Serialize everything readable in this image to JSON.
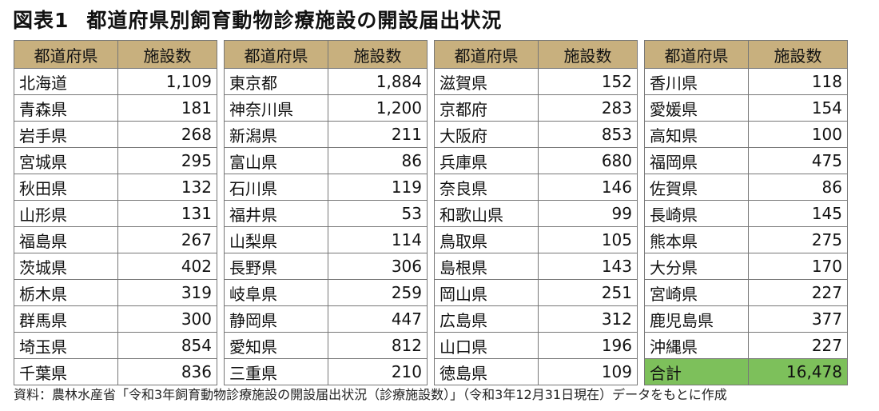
{
  "title": {
    "figure_label": "図表1",
    "text": "都道府県別飼育動物診療施設の開設届出状況"
  },
  "headers": {
    "prefecture": "都道府県",
    "count": "施設数"
  },
  "columns": [
    [
      {
        "pref": "北海道",
        "count": "1,109"
      },
      {
        "pref": "青森県",
        "count": "181"
      },
      {
        "pref": "岩手県",
        "count": "268"
      },
      {
        "pref": "宮城県",
        "count": "295"
      },
      {
        "pref": "秋田県",
        "count": "132"
      },
      {
        "pref": "山形県",
        "count": "131"
      },
      {
        "pref": "福島県",
        "count": "267"
      },
      {
        "pref": "茨城県",
        "count": "402"
      },
      {
        "pref": "栃木県",
        "count": "319"
      },
      {
        "pref": "群馬県",
        "count": "300"
      },
      {
        "pref": "埼玉県",
        "count": "854"
      },
      {
        "pref": "千葉県",
        "count": "836"
      }
    ],
    [
      {
        "pref": "東京都",
        "count": "1,884"
      },
      {
        "pref": "神奈川県",
        "count": "1,200"
      },
      {
        "pref": "新潟県",
        "count": "211"
      },
      {
        "pref": "富山県",
        "count": "86"
      },
      {
        "pref": "石川県",
        "count": "119"
      },
      {
        "pref": "福井県",
        "count": "53"
      },
      {
        "pref": "山梨県",
        "count": "114"
      },
      {
        "pref": "長野県",
        "count": "306"
      },
      {
        "pref": "岐阜県",
        "count": "259"
      },
      {
        "pref": "静岡県",
        "count": "447"
      },
      {
        "pref": "愛知県",
        "count": "812"
      },
      {
        "pref": "三重県",
        "count": "210"
      }
    ],
    [
      {
        "pref": "滋賀県",
        "count": "152"
      },
      {
        "pref": "京都府",
        "count": "283"
      },
      {
        "pref": "大阪府",
        "count": "853"
      },
      {
        "pref": "兵庫県",
        "count": "680"
      },
      {
        "pref": "奈良県",
        "count": "146"
      },
      {
        "pref": "和歌山県",
        "count": "99"
      },
      {
        "pref": "鳥取県",
        "count": "105"
      },
      {
        "pref": "島根県",
        "count": "143"
      },
      {
        "pref": "岡山県",
        "count": "251"
      },
      {
        "pref": "広島県",
        "count": "312"
      },
      {
        "pref": "山口県",
        "count": "196"
      },
      {
        "pref": "徳島県",
        "count": "109"
      }
    ],
    [
      {
        "pref": "香川県",
        "count": "118"
      },
      {
        "pref": "愛媛県",
        "count": "154"
      },
      {
        "pref": "高知県",
        "count": "100"
      },
      {
        "pref": "福岡県",
        "count": "475"
      },
      {
        "pref": "佐賀県",
        "count": "86"
      },
      {
        "pref": "長崎県",
        "count": "145"
      },
      {
        "pref": "熊本県",
        "count": "275"
      },
      {
        "pref": "大分県",
        "count": "170"
      },
      {
        "pref": "宮崎県",
        "count": "227"
      },
      {
        "pref": "鹿児島県",
        "count": "377"
      },
      {
        "pref": "沖縄県",
        "count": "227"
      },
      {
        "pref": "合計",
        "count": "16,478",
        "total": true
      }
    ]
  ],
  "colors": {
    "header_bg": "#c8b07e",
    "total_bg": "#7dc05b"
  },
  "source": "資料：農林水産省「令和3年飼育動物診療施設の開設届出状況（診療施設数）」（令和3年12月31日現在）データをもとに作成"
}
